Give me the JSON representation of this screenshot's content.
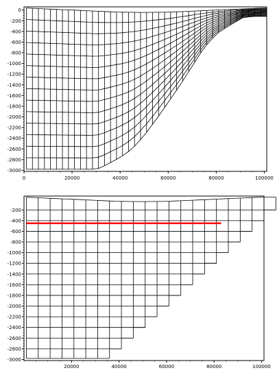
{
  "chart_data": [
    {
      "type": "diagram",
      "description_of_mesh": "sigma-coordinate vertical grid following a bathymetry profile",
      "x_ticks": [
        0,
        20000,
        40000,
        60000,
        80000,
        100000
      ],
      "y_ticks": [
        0,
        -200,
        -400,
        -600,
        -800,
        -1000,
        -1200,
        -1400,
        -1600,
        -1800,
        -2000,
        -2200,
        -2400,
        -2600,
        -2800,
        -3000
      ],
      "xlim": [
        0,
        101000
      ],
      "ylim": [
        -3020,
        60
      ],
      "sigma_levels": 14,
      "column_spacing": 2500,
      "surface": {
        "x": [
          0,
          20000,
          30000,
          40000,
          50000,
          60000,
          70000,
          80000,
          90000,
          95000,
          101000
        ],
        "y": [
          40,
          0,
          -20,
          -40,
          -45,
          -40,
          -20,
          0,
          20,
          30,
          40
        ]
      },
      "bottom": {
        "x": [
          0,
          5000,
          10000,
          20000,
          30000,
          32000,
          40000,
          45000,
          50000,
          55000,
          60000,
          65000,
          70000,
          75000,
          80000,
          85000,
          88000,
          90000,
          95000,
          101000
        ],
        "y": [
          -2980,
          -2980,
          -2980,
          -2980,
          -2980,
          -2950,
          -2760,
          -2600,
          -2350,
          -2050,
          -1730,
          -1400,
          -1050,
          -700,
          -450,
          -300,
          -230,
          -150,
          -120,
          -120
        ]
      }
    },
    {
      "type": "diagram",
      "description_of_mesh": "z-level vertical grid with stepped bathymetry",
      "x_ticks": [
        20000,
        40000,
        60000,
        80000,
        100000
      ],
      "y_ticks": [
        -200,
        -400,
        -600,
        -800,
        -1000,
        -1200,
        -1400,
        -1600,
        -1800,
        -2000,
        -2200,
        -2400,
        -2600,
        -2800,
        -3000
      ],
      "xlim": [
        0,
        101000
      ],
      "ylim": [
        -3020,
        60
      ],
      "level_spacing": 200,
      "column_spacing": 5000,
      "surface": {
        "x": [
          0,
          20000,
          30000,
          40000,
          50000,
          60000,
          70000,
          80000,
          90000,
          95000,
          101000
        ],
        "y": [
          40,
          0,
          -20,
          -40,
          -45,
          -40,
          -20,
          0,
          20,
          30,
          40
        ]
      },
      "column_bottoms": [
        -2980,
        -2980,
        -2980,
        -2980,
        -2980,
        -2980,
        -2980,
        -2800,
        -2600,
        -2400,
        -2200,
        -2000,
        -1800,
        -1600,
        -1400,
        -1200,
        -1000,
        -800,
        -600,
        -400,
        -200
      ],
      "highlight_line": {
        "y": -450,
        "x_start": 1000,
        "x_end": 83000,
        "color": "#ff0000"
      }
    }
  ],
  "colors": {
    "mesh": "#000000",
    "axis": "#000000",
    "highlight": "#ff0000",
    "background": "#ffffff"
  }
}
